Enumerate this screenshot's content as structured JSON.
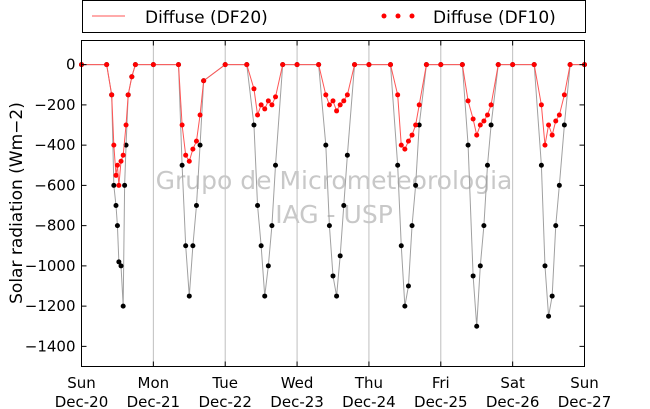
{
  "watermark": {
    "line1": "Grupo de Micrometeorologia",
    "line2": "IAG - USP"
  },
  "colors": {
    "df10": "#ff0000",
    "df20": "#ff5555",
    "global_points": "#000000",
    "global_line": "#a0a0a0",
    "grid": "#bfbfbf"
  },
  "chart_data": {
    "type": "line",
    "ylabel": "Solar radiation (Wm−2)",
    "ylabel_unit_note": "",
    "ylim": [
      -1500,
      120
    ],
    "yticks": [
      0,
      -200,
      -400,
      -600,
      -800,
      -1000,
      -1200,
      -1400
    ],
    "xlim": [
      0,
      7
    ],
    "xticks": [
      {
        "day": "Sun",
        "date": "Dec-20"
      },
      {
        "day": "Mon",
        "date": "Dec-21"
      },
      {
        "day": "Tue",
        "date": "Dec-22"
      },
      {
        "day": "Wed",
        "date": "Dec-23"
      },
      {
        "day": "Thu",
        "date": "Dec-24"
      },
      {
        "day": "Fri",
        "date": "Dec-25"
      },
      {
        "day": "Sat",
        "date": "Dec-26"
      },
      {
        "day": "Sun",
        "date": "Dec-27"
      }
    ],
    "grid": "vertical",
    "legend": {
      "placement": "top",
      "entries": [
        {
          "label": "Diffuse (DF20)",
          "style": "line"
        },
        {
          "label": "Diffuse (DF10)",
          "style": "dots"
        }
      ]
    },
    "series": [
      {
        "name": "Diffuse (DF10)",
        "style": "dots",
        "x": [
          0.0,
          0.35,
          0.42,
          0.45,
          0.48,
          0.5,
          0.52,
          0.55,
          0.58,
          0.62,
          0.65,
          0.7,
          0.75,
          1.0,
          1.35,
          1.4,
          1.45,
          1.5,
          1.55,
          1.6,
          1.65,
          1.7,
          2.0,
          2.3,
          2.4,
          2.45,
          2.5,
          2.55,
          2.6,
          2.65,
          2.7,
          2.8,
          3.0,
          3.3,
          3.4,
          3.45,
          3.5,
          3.55,
          3.6,
          3.65,
          3.7,
          3.8,
          4.0,
          4.3,
          4.4,
          4.45,
          4.5,
          4.55,
          4.6,
          4.65,
          4.7,
          4.8,
          5.0,
          5.3,
          5.38,
          5.45,
          5.5,
          5.55,
          5.6,
          5.65,
          5.7,
          5.8,
          6.0,
          6.3,
          6.4,
          6.45,
          6.5,
          6.55,
          6.6,
          6.65,
          6.72,
          6.8,
          7.0
        ],
        "y": [
          0,
          0,
          -150,
          -400,
          -550,
          -500,
          -600,
          -480,
          -450,
          -300,
          -150,
          -60,
          0,
          0,
          0,
          -300,
          -450,
          -480,
          -420,
          -380,
          -250,
          -80,
          0,
          0,
          -120,
          -250,
          -200,
          -220,
          -180,
          -200,
          -160,
          0,
          0,
          0,
          -150,
          -200,
          -180,
          -230,
          -200,
          -180,
          -150,
          0,
          0,
          0,
          -150,
          -400,
          -420,
          -380,
          -350,
          -300,
          -200,
          0,
          0,
          0,
          -180,
          -270,
          -350,
          -300,
          -280,
          -250,
          -200,
          0,
          0,
          0,
          -200,
          -400,
          -300,
          -350,
          -280,
          -250,
          -150,
          0,
          0
        ]
      },
      {
        "name": "",
        "style": "dots-with-line",
        "x": [
          0.0,
          0.35,
          0.42,
          0.45,
          0.48,
          0.5,
          0.52,
          0.55,
          0.58,
          0.6,
          0.62,
          0.65,
          0.7,
          0.75,
          1.0,
          1.35,
          1.4,
          1.45,
          1.5,
          1.55,
          1.6,
          1.65,
          1.7,
          2.0,
          2.3,
          2.4,
          2.45,
          2.5,
          2.55,
          2.6,
          2.65,
          2.7,
          2.8,
          3.0,
          3.3,
          3.4,
          3.45,
          3.5,
          3.55,
          3.6,
          3.65,
          3.7,
          3.8,
          4.0,
          4.3,
          4.4,
          4.45,
          4.5,
          4.55,
          4.6,
          4.65,
          4.7,
          4.8,
          5.0,
          5.3,
          5.38,
          5.45,
          5.5,
          5.55,
          5.6,
          5.65,
          5.7,
          5.8,
          6.0,
          6.3,
          6.4,
          6.45,
          6.5,
          6.55,
          6.6,
          6.65,
          6.72,
          6.8,
          7.0
        ],
        "y": [
          0,
          0,
          -150,
          -600,
          -700,
          -800,
          -980,
          -1000,
          -1200,
          -600,
          -400,
          -150,
          -60,
          0,
          0,
          0,
          -500,
          -900,
          -1150,
          -900,
          -700,
          -400,
          -80,
          0,
          0,
          -300,
          -700,
          -900,
          -1150,
          -1000,
          -800,
          -500,
          0,
          0,
          0,
          -400,
          -800,
          -1050,
          -1150,
          -950,
          -700,
          -450,
          0,
          0,
          0,
          -500,
          -900,
          -1200,
          -1100,
          -800,
          -600,
          -300,
          0,
          0,
          0,
          -400,
          -1050,
          -1300,
          -1000,
          -800,
          -500,
          -300,
          0,
          0,
          0,
          -500,
          -1000,
          -1250,
          -1150,
          -800,
          -600,
          -300,
          0,
          0
        ]
      }
    ]
  }
}
